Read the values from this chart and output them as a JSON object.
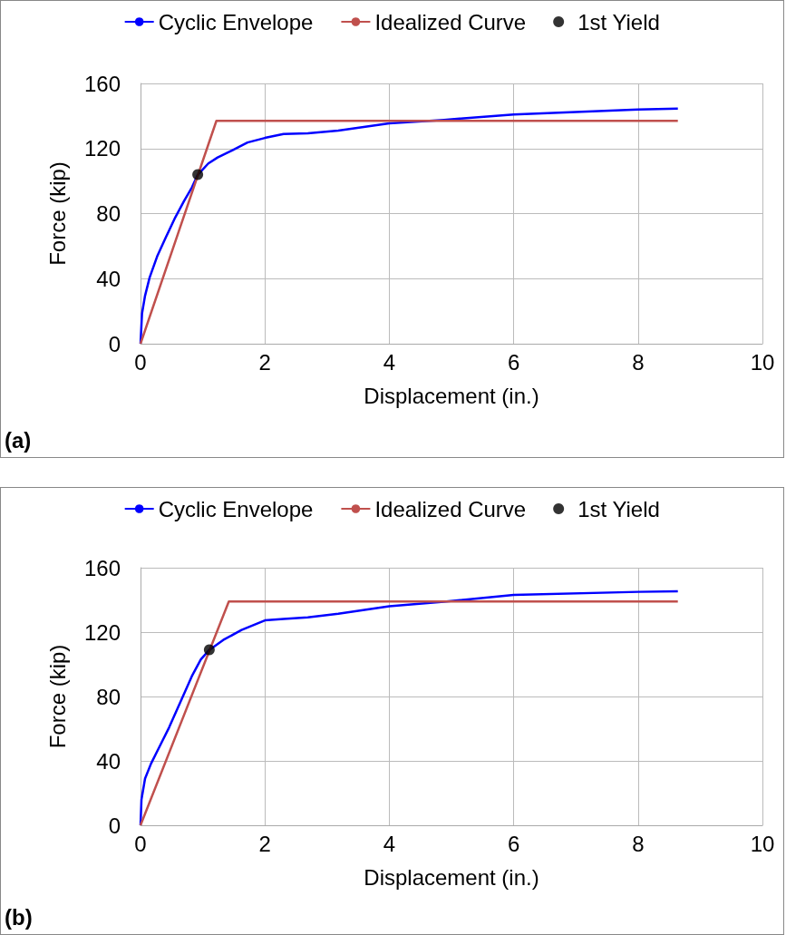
{
  "chart_data": [
    {
      "type": "line",
      "xlabel": "Displacement (in.)",
      "ylabel": "Force (kip)",
      "annotations": [
        "(a)"
      ],
      "xlim": [
        0,
        10
      ],
      "xticks": [
        0,
        2,
        4,
        6,
        8,
        10
      ],
      "ylim": [
        0,
        160
      ],
      "yticks": [
        0,
        40,
        80,
        120,
        160
      ],
      "grid": true,
      "legend": "top",
      "marker": "none",
      "series": [
        {
          "name": "Cyclic Envelope",
          "color": "#0000ff",
          "x": [
            0,
            0.024,
            0.073,
            0.146,
            0.267,
            0.41,
            0.558,
            0.7,
            0.825,
            0.92,
            1.09,
            1.24,
            1.48,
            1.72,
            2.0,
            2.3,
            2.69,
            3.18,
            4.0,
            4.88,
            6.0,
            8.0,
            8.64
          ],
          "values": [
            0,
            18.5,
            29.5,
            40.6,
            53.6,
            65.6,
            77.6,
            87.7,
            96,
            103.8,
            110.8,
            114.5,
            119,
            123.7,
            126.5,
            128.9,
            129.3,
            131,
            135.5,
            137.6,
            140.9,
            144,
            144.5
          ]
        },
        {
          "name": "Idealized Curve",
          "color": "#c0504d",
          "x": [
            0,
            1.22,
            8.64
          ],
          "values": [
            0,
            137,
            137
          ]
        },
        {
          "name": "1st Yield",
          "type": "scatter",
          "marker": "circle",
          "color": "#000000",
          "x": [
            0.92
          ],
          "values": [
            104
          ]
        }
      ]
    },
    {
      "type": "line",
      "xlabel": "Displacement (in.)",
      "ylabel": "Force (kip)",
      "annotations": [
        "(b)"
      ],
      "xlim": [
        0,
        10
      ],
      "xticks": [
        0,
        2,
        4,
        6,
        8,
        10
      ],
      "ylim": [
        0,
        160
      ],
      "yticks": [
        0,
        40,
        80,
        120,
        160
      ],
      "grid": true,
      "legend": "top",
      "marker": "none",
      "series": [
        {
          "name": "Cyclic Envelope",
          "color": "#0000ff",
          "x": [
            0,
            0.015,
            0.073,
            0.17,
            0.315,
            0.46,
            0.655,
            0.825,
            0.97,
            1.106,
            1.33,
            1.625,
            2.0,
            2.3,
            2.69,
            3.18,
            4.0,
            4.88,
            6.0,
            8.0,
            8.64
          ],
          "values": [
            0,
            15.9,
            29,
            38.4,
            49.6,
            60.8,
            77.7,
            92.6,
            103,
            108.9,
            115.1,
            121.3,
            127.3,
            128.2,
            129.1,
            131.4,
            136,
            138.9,
            143.1,
            145,
            145.4
          ]
        },
        {
          "name": "Idealized Curve",
          "color": "#c0504d",
          "x": [
            0,
            1.42,
            8.64
          ],
          "values": [
            0,
            139,
            139
          ]
        },
        {
          "name": "1st Yield",
          "type": "scatter",
          "marker": "circle",
          "color": "#000000",
          "x": [
            1.106
          ],
          "values": [
            109
          ]
        }
      ]
    }
  ]
}
